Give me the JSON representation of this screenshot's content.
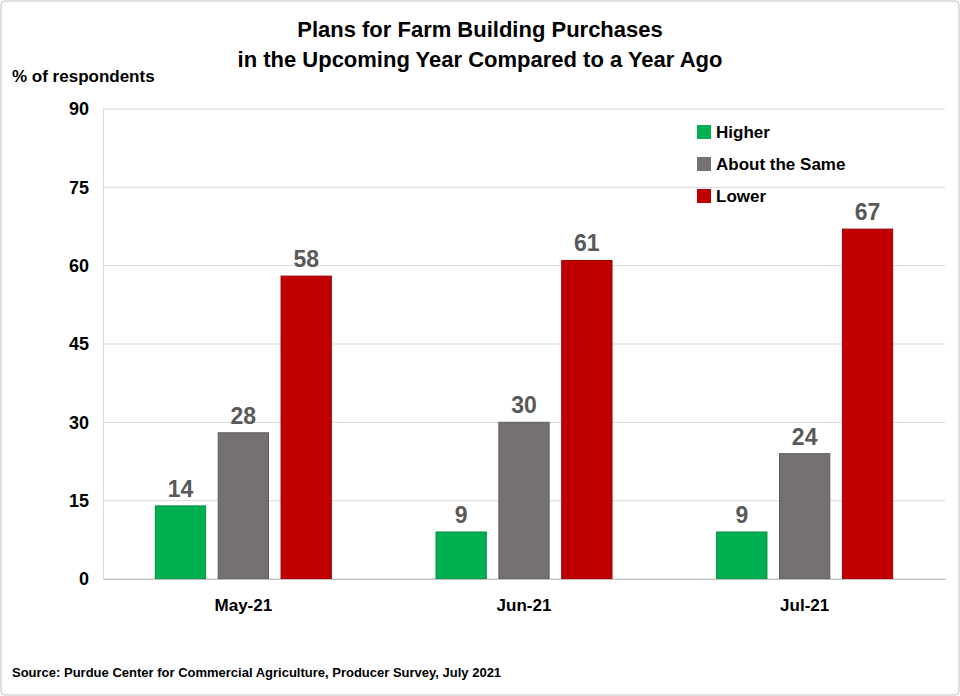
{
  "chart_data": {
    "type": "bar",
    "title": "Plans for Farm Building Purchases\nin the Upcoming Year Compared to a Year Ago",
    "ylabel": "% of respondents",
    "source": "Source: Purdue Center for Commercial Agriculture, Producer Survey, July 2021",
    "categories": [
      "May-21",
      "Jun-21",
      "Jul-21"
    ],
    "series": [
      {
        "name": "Higher",
        "color": "#00b050",
        "values": [
          14,
          9,
          9
        ]
      },
      {
        "name": "About the Same",
        "color": "#767171",
        "values": [
          28,
          30,
          24
        ]
      },
      {
        "name": "Lower",
        "color": "#c00000",
        "values": [
          58,
          61,
          67
        ]
      }
    ],
    "ylim": [
      0,
      90
    ],
    "yticks": [
      0,
      15,
      30,
      45,
      60,
      75,
      90
    ],
    "grid": true,
    "legend": "top-right",
    "data_labels": true
  }
}
